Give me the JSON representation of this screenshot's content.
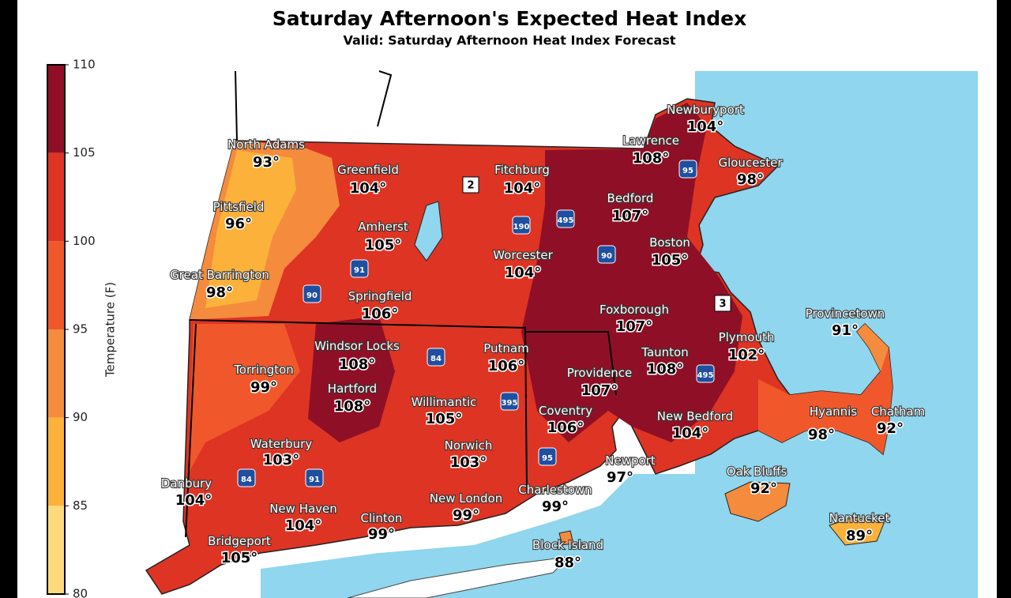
{
  "header": {
    "title": "Saturday Afternoon's Expected Heat Index",
    "subtitle": "Valid: Saturday Afternoon Heat Index Forecast"
  },
  "legend": {
    "title": "Temperature (F)",
    "range": [
      80,
      110
    ],
    "ticks": [
      110,
      105,
      100,
      95,
      90,
      85,
      80
    ],
    "bands": [
      {
        "from": 105,
        "to": 110,
        "color": "#8f1026"
      },
      {
        "from": 100,
        "to": 105,
        "color": "#de3423"
      },
      {
        "from": 95,
        "to": 100,
        "color": "#f0582b"
      },
      {
        "from": 90,
        "to": 95,
        "color": "#f58b3d"
      },
      {
        "from": 85,
        "to": 90,
        "color": "#fbb13a"
      },
      {
        "from": 80,
        "to": 85,
        "color": "#fdda7c"
      }
    ]
  },
  "cities": [
    {
      "name": "North Adams",
      "value": "93°"
    },
    {
      "name": "Greenfield",
      "value": "104°"
    },
    {
      "name": "Fitchburg",
      "value": "104°"
    },
    {
      "name": "Lawrence",
      "value": "108°"
    },
    {
      "name": "Newburyport",
      "value": "104°"
    },
    {
      "name": "Gloucester",
      "value": "98°"
    },
    {
      "name": "Pittsfield",
      "value": "96°"
    },
    {
      "name": "Amherst",
      "value": "105°"
    },
    {
      "name": "Bedford",
      "value": "107°"
    },
    {
      "name": "Worcester",
      "value": "104°"
    },
    {
      "name": "Boston",
      "value": "105°"
    },
    {
      "name": "Great Barrington",
      "value": "98°"
    },
    {
      "name": "Springfield",
      "value": "106°"
    },
    {
      "name": "Foxborough",
      "value": "107°"
    },
    {
      "name": "Provincetown",
      "value": "91°"
    },
    {
      "name": "Windsor Locks",
      "value": "108°"
    },
    {
      "name": "Putnam",
      "value": "106°"
    },
    {
      "name": "Taunton",
      "value": "108°"
    },
    {
      "name": "Plymouth",
      "value": "102°"
    },
    {
      "name": "Torrington",
      "value": "99°"
    },
    {
      "name": "Providence",
      "value": "107°"
    },
    {
      "name": "Hartford",
      "value": "108°"
    },
    {
      "name": "Willimantic",
      "value": "105°"
    },
    {
      "name": "Coventry",
      "value": "106°"
    },
    {
      "name": "New Bedford",
      "value": "104°"
    },
    {
      "name": "Hyannis",
      "value": "98°"
    },
    {
      "name": "Chatham",
      "value": "92°"
    },
    {
      "name": "Waterbury",
      "value": "103°"
    },
    {
      "name": "Norwich",
      "value": "103°"
    },
    {
      "name": "Newport",
      "value": "97°"
    },
    {
      "name": "Oak Bluffs",
      "value": "92°"
    },
    {
      "name": "Danbury",
      "value": "104°"
    },
    {
      "name": "Charlestown",
      "value": "99°"
    },
    {
      "name": "New London",
      "value": "99°"
    },
    {
      "name": "New Haven",
      "value": "104°"
    },
    {
      "name": "Clinton",
      "value": "99°"
    },
    {
      "name": "Nantucket",
      "value": "89°"
    },
    {
      "name": "Bridgeport",
      "value": "105°"
    },
    {
      "name": "Block Island",
      "value": "88°"
    }
  ],
  "shields": [
    "90",
    "91",
    "84",
    "395",
    "95",
    "190",
    "495",
    "90",
    "95",
    "495",
    "84",
    "91"
  ],
  "markers": [
    "2",
    "3"
  ]
}
